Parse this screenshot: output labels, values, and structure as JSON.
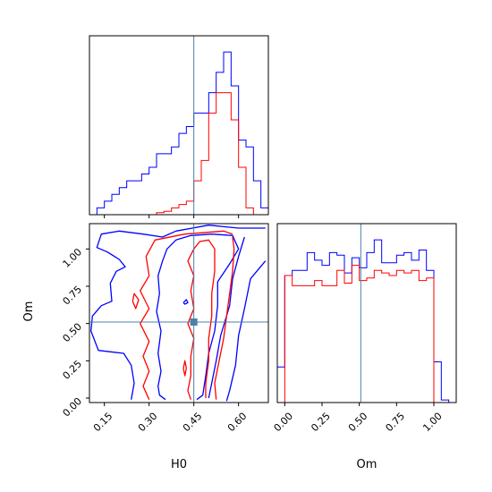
{
  "chart_data": {
    "type": "corner",
    "parameters": [
      "H0",
      "Om"
    ],
    "truth": {
      "H0": 0.45,
      "Om": 0.51
    },
    "colors": {
      "blue": "#0000ff",
      "red": "#ff0000",
      "truth": "#4c80a8"
    },
    "panels": {
      "h0_hist": {
        "type": "step-histogram",
        "x_range": [
          0.1,
          0.7
        ],
        "bin_edges": [
          0.1,
          0.125,
          0.15,
          0.175,
          0.2,
          0.225,
          0.25,
          0.275,
          0.3,
          0.325,
          0.35,
          0.375,
          0.4,
          0.425,
          0.45,
          0.475,
          0.5,
          0.525,
          0.55,
          0.575,
          0.6,
          0.625,
          0.65,
          0.675,
          0.7
        ],
        "series": [
          {
            "color": "blue",
            "values": [
              0,
              1,
              2,
              3,
              4,
              5,
              5,
              6,
              7,
              9,
              9,
              10,
              12,
              13,
              15,
              15,
              18,
              21,
              24,
              19,
              11,
              10,
              5,
              1
            ]
          },
          {
            "color": "red",
            "values": [
              0,
              0,
              0,
              0,
              0,
              0,
              0,
              0,
              0,
              0.3,
              0.5,
              1,
              1.5,
              2,
              5,
              8,
              15,
              18,
              18,
              14,
              7,
              1,
              0,
              0
            ]
          }
        ]
      },
      "joint": {
        "type": "contour",
        "x_range": [
          0.1,
          0.7
        ],
        "y_range": [
          -0.03,
          1.17
        ],
        "contours": [
          {
            "color": "blue",
            "points": [
              [
                0.355,
                -0.01
              ],
              [
                0.335,
                0.02
              ],
              [
                0.33,
                0.08
              ],
              [
                0.34,
                0.18
              ],
              [
                0.33,
                0.3
              ],
              [
                0.34,
                0.45
              ],
              [
                0.325,
                0.58
              ],
              [
                0.335,
                0.7
              ],
              [
                0.33,
                0.82
              ],
              [
                0.345,
                0.92
              ],
              [
                0.36,
                1.0
              ],
              [
                0.39,
                1.06
              ],
              [
                0.44,
                1.09
              ],
              [
                0.51,
                1.1
              ],
              [
                0.58,
                1.09
              ],
              [
                0.6,
                1.0
              ],
              [
                0.57,
                0.9
              ],
              [
                0.53,
                0.78
              ],
              [
                0.53,
                0.62
              ],
              [
                0.52,
                0.45
              ],
              [
                0.5,
                0.3
              ],
              [
                0.49,
                0.15
              ],
              [
                0.48,
                0.02
              ],
              [
                0.46,
                -0.01
              ]
            ]
          },
          {
            "color": "blue",
            "points": [
              [
                0.69,
                0.92
              ],
              [
                0.64,
                0.8
              ],
              [
                0.62,
                0.6
              ],
              [
                0.6,
                0.42
              ],
              [
                0.59,
                0.22
              ],
              [
                0.57,
                0.05
              ],
              [
                0.56,
                -0.02
              ]
            ]
          },
          {
            "color": "blue",
            "points": [
              [
                0.62,
                1.08
              ],
              [
                0.6,
                0.95
              ],
              [
                0.58,
                0.8
              ],
              [
                0.57,
                0.62
              ],
              [
                0.54,
                0.42
              ],
              [
                0.525,
                0.25
              ],
              [
                0.51,
                0.1
              ],
              [
                0.5,
                0.0
              ]
            ]
          },
          {
            "color": "blue",
            "points": [
              [
                0.24,
                -0.01
              ],
              [
                0.25,
                0.1
              ],
              [
                0.24,
                0.22
              ],
              [
                0.215,
                0.3
              ],
              [
                0.13,
                0.32
              ],
              [
                0.105,
                0.45
              ],
              [
                0.11,
                0.55
              ],
              [
                0.14,
                0.62
              ],
              [
                0.175,
                0.65
              ],
              [
                0.17,
                0.77
              ],
              [
                0.19,
                0.85
              ],
              [
                0.22,
                0.88
              ],
              [
                0.2,
                0.93
              ],
              [
                0.16,
                0.98
              ],
              [
                0.125,
                1.01
              ],
              [
                0.14,
                1.1
              ],
              [
                0.2,
                1.12
              ],
              [
                0.28,
                1.1
              ],
              [
                0.345,
                1.08
              ],
              [
                0.39,
                1.12
              ],
              [
                0.5,
                1.16
              ],
              [
                0.6,
                1.14
              ],
              [
                0.69,
                1.14
              ]
            ]
          },
          {
            "color": "red",
            "points": [
              [
                0.44,
                -0.01
              ],
              [
                0.43,
                0.05
              ],
              [
                0.44,
                0.15
              ],
              [
                0.44,
                0.28
              ],
              [
                0.45,
                0.4
              ],
              [
                0.43,
                0.5
              ],
              [
                0.45,
                0.6
              ],
              [
                0.44,
                0.72
              ],
              [
                0.45,
                0.82
              ],
              [
                0.43,
                0.92
              ],
              [
                0.45,
                1.0
              ],
              [
                0.47,
                1.05
              ],
              [
                0.5,
                1.06
              ],
              [
                0.52,
                1.0
              ],
              [
                0.52,
                0.85
              ],
              [
                0.51,
                0.7
              ],
              [
                0.51,
                0.55
              ],
              [
                0.5,
                0.4
              ],
              [
                0.5,
                0.25
              ],
              [
                0.49,
                0.1
              ],
              [
                0.49,
                0.0
              ]
            ]
          },
          {
            "color": "red",
            "points": [
              [
                0.525,
                -0.01
              ],
              [
                0.52,
                0.1
              ],
              [
                0.535,
                0.25
              ],
              [
                0.55,
                0.4
              ],
              [
                0.56,
                0.55
              ],
              [
                0.57,
                0.7
              ],
              [
                0.58,
                0.85
              ],
              [
                0.585,
                1.0
              ],
              [
                0.58,
                1.08
              ]
            ]
          },
          {
            "color": "red",
            "points": [
              [
                0.3,
                -0.01
              ],
              [
                0.28,
                0.08
              ],
              [
                0.3,
                0.18
              ],
              [
                0.28,
                0.28
              ],
              [
                0.3,
                0.38
              ],
              [
                0.27,
                0.5
              ],
              [
                0.3,
                0.6
              ],
              [
                0.27,
                0.72
              ],
              [
                0.3,
                0.82
              ],
              [
                0.29,
                0.95
              ],
              [
                0.32,
                1.06
              ],
              [
                0.42,
                1.1
              ],
              [
                0.55,
                1.12
              ],
              [
                0.58,
                1.1
              ]
            ]
          },
          {
            "color": "red",
            "points": [
              [
                0.415,
                0.2
              ],
              [
                0.42,
                0.25
              ],
              [
                0.425,
                0.2
              ],
              [
                0.42,
                0.15
              ],
              [
                0.415,
                0.2
              ]
            ]
          },
          {
            "color": "red",
            "points": [
              [
                0.245,
                0.65
              ],
              [
                0.25,
                0.7
              ],
              [
                0.265,
                0.66
              ],
              [
                0.255,
                0.6
              ],
              [
                0.245,
                0.65
              ]
            ]
          },
          {
            "color": "blue",
            "points": [
              [
                0.415,
                0.64
              ],
              [
                0.425,
                0.66
              ],
              [
                0.43,
                0.64
              ],
              [
                0.42,
                0.63
              ],
              [
                0.415,
                0.64
              ]
            ]
          }
        ]
      },
      "om_hist": {
        "type": "step-histogram",
        "x_range": [
          -0.05,
          1.15
        ],
        "bin_edges": [
          -0.05,
          0.0,
          0.05,
          0.1,
          0.15,
          0.2,
          0.25,
          0.3,
          0.35,
          0.4,
          0.45,
          0.5,
          0.55,
          0.6,
          0.65,
          0.7,
          0.75,
          0.8,
          0.85,
          0.9,
          0.95,
          1.0,
          1.05,
          1.1
        ],
        "series": [
          {
            "color": "blue",
            "values": [
              14,
              50,
              52,
              52,
              59,
              56,
              54,
              59,
              58,
              51,
              57,
              53,
              59,
              64,
              55,
              55,
              58,
              59,
              56,
              60,
              52,
              16,
              1
            ]
          },
          {
            "color": "red",
            "values": [
              0,
              50,
              46,
              46,
              46,
              48,
              46,
              46,
              52,
              47,
              54,
              48,
              49,
              52,
              51,
              50,
              52,
              51,
              52,
              48,
              49,
              0,
              0
            ]
          }
        ]
      }
    },
    "axes": {
      "h0": {
        "label": "H0",
        "ticks": [
          0.15,
          0.3,
          0.45,
          0.6
        ],
        "tick_labels": [
          "0.15",
          "0.30",
          "0.45",
          "0.60"
        ]
      },
      "om_y": {
        "label": "Om",
        "ticks": [
          0.0,
          0.25,
          0.5,
          0.75,
          1.0
        ],
        "tick_labels": [
          "0.00",
          "0.25",
          "0.50",
          "0.75",
          "1.00"
        ]
      },
      "om_x": {
        "label": "Om",
        "ticks": [
          0.0,
          0.25,
          0.5,
          0.75,
          1.0
        ],
        "tick_labels": [
          "0.00",
          "0.25",
          "0.50",
          "0.75",
          "1.00"
        ]
      }
    }
  }
}
